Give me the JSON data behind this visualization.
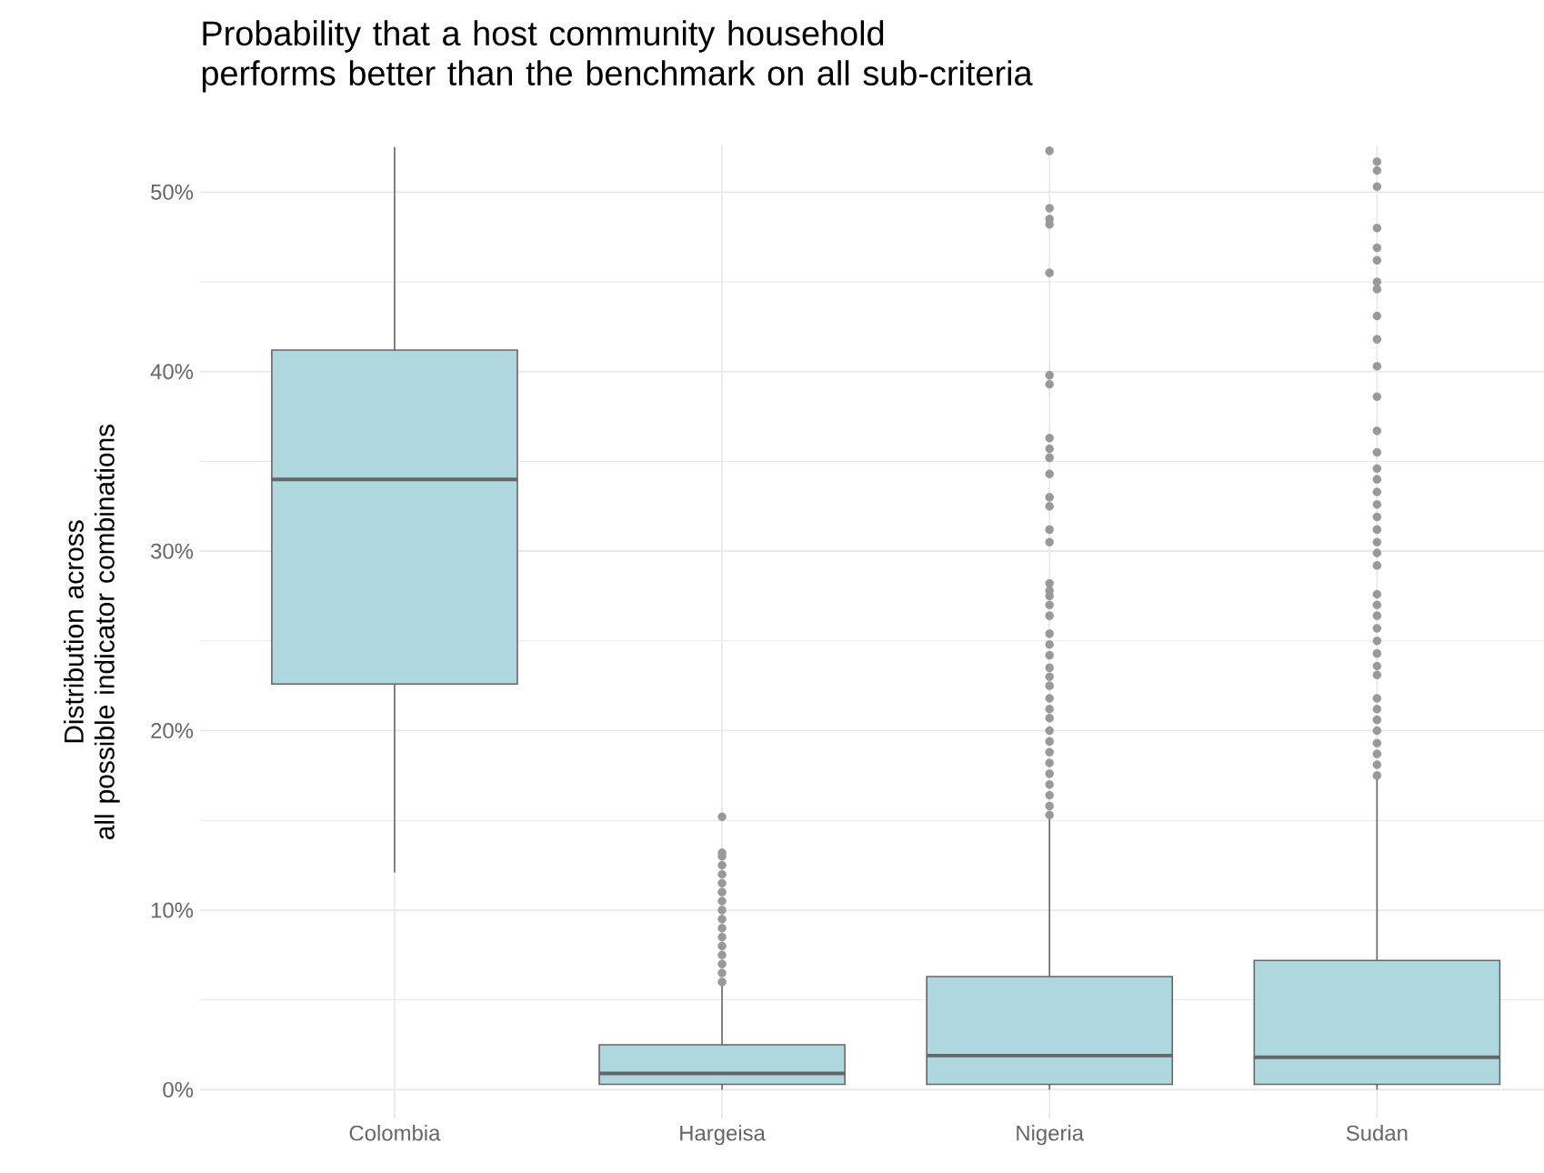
{
  "chart_data": {
    "type": "box",
    "title": "Probability that a host community household\nperforms better than the benchmark on all sub-criteria",
    "ylabel": "Distribution across\nall possible indicator combinations",
    "categories": [
      "Colombia",
      "Hargeisa",
      "Nigeria",
      "Sudan"
    ],
    "color": "#aed8de",
    "boxes": [
      {
        "low": 12.1,
        "q1": 22.6,
        "median": 34.0,
        "q3": 41.2,
        "high": 52.5
      },
      {
        "low": 0.0,
        "q1": 0.3,
        "median": 0.9,
        "q3": 2.5,
        "high": 5.9,
        "outliers": [
          6.0,
          6.5,
          7.0,
          7.5,
          8.0,
          8.5,
          9.0,
          9.5,
          10.0,
          10.5,
          11.0,
          11.5,
          12.0,
          12.5,
          13.0,
          13.2,
          15.2
        ]
      },
      {
        "low": 0.0,
        "q1": 0.3,
        "median": 1.9,
        "q3": 6.3,
        "high": 15.2,
        "outliers": [
          15.3,
          15.8,
          16.4,
          17.0,
          17.6,
          18.2,
          18.8,
          19.4,
          20.0,
          20.7,
          21.2,
          21.8,
          22.5,
          23.0,
          23.5,
          24.2,
          24.8,
          25.4,
          26.4,
          27.0,
          27.5,
          27.8,
          28.2,
          30.5,
          31.2,
          32.5,
          33.0,
          34.3,
          35.2,
          35.7,
          36.3,
          39.3,
          39.8,
          45.5,
          48.2,
          48.5,
          49.1,
          52.3
        ]
      },
      {
        "low": 0.0,
        "q1": 0.3,
        "median": 1.8,
        "q3": 7.2,
        "high": 17.3,
        "outliers": [
          17.5,
          18.1,
          18.7,
          19.3,
          20.0,
          20.6,
          21.2,
          21.8,
          23.1,
          23.6,
          24.3,
          25.0,
          25.7,
          26.4,
          27.0,
          27.6,
          29.2,
          29.9,
          30.5,
          31.2,
          31.9,
          32.6,
          33.3,
          34.0,
          34.6,
          35.5,
          36.7,
          38.6,
          40.3,
          41.8,
          43.1,
          44.6,
          45.0,
          46.2,
          46.9,
          48.0,
          50.3,
          51.2,
          51.7
        ]
      }
    ],
    "ylim": [
      -1.6,
      52.6
    ],
    "yticks": [
      {
        "value": 0,
        "label": "0%"
      },
      {
        "value": 10,
        "label": "10%"
      },
      {
        "value": 20,
        "label": "20%"
      },
      {
        "value": 30,
        "label": "30%"
      },
      {
        "value": 40,
        "label": "40%"
      },
      {
        "value": 50,
        "label": "50%"
      }
    ],
    "grid": true
  }
}
